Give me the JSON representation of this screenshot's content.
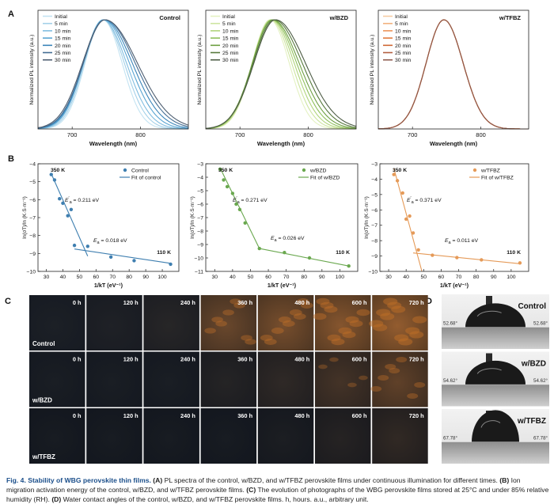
{
  "panel_letters": {
    "A": "A",
    "B": "B",
    "C": "C",
    "D": "D"
  },
  "panelA": {
    "xlabel": "Wavelength (nm)",
    "ylabel": "Normalized PL intensity (a.u.)",
    "xticks": [
      "700",
      "800"
    ],
    "legend": [
      "Initial",
      "5 min",
      "10 min",
      "15 min",
      "20 min",
      "25 min",
      "30 min"
    ],
    "plots": [
      {
        "tag": "Control",
        "colors": [
          "#c3e3f2",
          "#a3d0e8",
          "#80bde0",
          "#5aa5d2",
          "#3c86ba",
          "#446d93",
          "#4d5d70"
        ]
      },
      {
        "tag": "w/BZD",
        "colors": [
          "#e4f1c2",
          "#cde4a0",
          "#b1d47c",
          "#8fc05b",
          "#6e9f42",
          "#577a3d",
          "#4d5c45"
        ]
      },
      {
        "tag": "w/TFBZ",
        "colors": [
          "#f6cba3",
          "#f2b07c",
          "#ec935a",
          "#e07a3e",
          "#cf6836",
          "#b35f40",
          "#8e5a4c"
        ]
      }
    ]
  },
  "chart_data": [
    {
      "type": "line",
      "panel": "A",
      "name": "Control",
      "xlabel": "Wavelength (nm)",
      "ylabel": "Normalized PL intensity (a.u.)",
      "xlim": [
        650,
        870
      ],
      "series": [
        {
          "name": "Initial",
          "peak_nm": 745
        },
        {
          "name": "5 min",
          "peak_nm": 745
        },
        {
          "name": "10 min",
          "peak_nm": 745
        },
        {
          "name": "15 min",
          "peak_nm": 746
        },
        {
          "name": "20 min",
          "peak_nm": 747
        },
        {
          "name": "25 min",
          "peak_nm": 748
        },
        {
          "name": "30 min",
          "peak_nm": 748
        }
      ]
    },
    {
      "type": "line",
      "panel": "A",
      "name": "w/BZD",
      "xlabel": "Wavelength (nm)",
      "ylabel": "Normalized PL intensity (a.u.)",
      "xlim": [
        650,
        870
      ],
      "series": [
        {
          "name": "Initial",
          "peak_nm": 744
        },
        {
          "name": "5 min",
          "peak_nm": 745
        },
        {
          "name": "10 min",
          "peak_nm": 746
        },
        {
          "name": "15 min",
          "peak_nm": 747
        },
        {
          "name": "20 min",
          "peak_nm": 748
        },
        {
          "name": "25 min",
          "peak_nm": 750
        },
        {
          "name": "30 min",
          "peak_nm": 752
        }
      ]
    },
    {
      "type": "line",
      "panel": "A",
      "name": "w/TFBZ",
      "xlabel": "Wavelength (nm)",
      "ylabel": "Normalized PL intensity (a.u.)",
      "xlim": [
        650,
        870
      ],
      "series": [
        {
          "name": "Initial",
          "peak_nm": 746
        },
        {
          "name": "5 min",
          "peak_nm": 746
        },
        {
          "name": "10 min",
          "peak_nm": 746
        },
        {
          "name": "15 min",
          "peak_nm": 746
        },
        {
          "name": "20 min",
          "peak_nm": 746
        },
        {
          "name": "25 min",
          "peak_nm": 746
        },
        {
          "name": "30 min",
          "peak_nm": 746
        }
      ]
    },
    {
      "type": "scatter",
      "panel": "B",
      "name": "Control",
      "color": "#3f7fb0",
      "xlabel": "1/kT (eV⁻¹)",
      "ylabel": "ln(σT)/ln (K·S·m⁻¹)",
      "xlim": [
        25,
        110
      ],
      "ylim": [
        -10,
        -4
      ],
      "xticks": [
        30,
        40,
        50,
        60,
        70,
        80,
        90,
        100
      ],
      "yticks": [
        -4,
        -5,
        -6,
        -7,
        -8,
        -9,
        -10
      ],
      "points": {
        "x": [
          33,
          35,
          38,
          40,
          43,
          45,
          47,
          55,
          69,
          83,
          105
        ],
        "y": [
          -4.6,
          -4.9,
          -5.95,
          -6.2,
          -6.9,
          -6.55,
          -8.55,
          -8.6,
          -9.2,
          -9.4,
          -9.6
        ]
      },
      "fit_high": {
        "x": [
          33,
          55
        ],
        "y": [
          -4.55,
          -9.15
        ]
      },
      "fit_low": {
        "x": [
          47,
          105
        ],
        "y": [
          -8.75,
          -9.55
        ]
      },
      "legend": [
        "Control",
        "Fit of control"
      ],
      "temp_high": "350 K",
      "temp_low": "110 K",
      "ea_high": "= 0.211 eV",
      "ea_low": "= 0.018 eV"
    },
    {
      "type": "scatter",
      "panel": "B",
      "name": "w/BZD",
      "color": "#6aa84f",
      "xlabel": "1/kT (eV⁻¹)",
      "ylabel": "ln(σT)/ln (K·S·m⁻¹)",
      "xlim": [
        25,
        110
      ],
      "ylim": [
        -11,
        -3
      ],
      "xticks": [
        30,
        40,
        50,
        60,
        70,
        80,
        90,
        100
      ],
      "yticks": [
        -3,
        -4,
        -5,
        -6,
        -7,
        -8,
        -9,
        -10,
        -11
      ],
      "points": {
        "x": [
          33,
          35,
          37,
          40,
          42,
          44,
          47,
          55,
          69,
          83,
          105
        ],
        "y": [
          -3.4,
          -4.2,
          -4.7,
          -5.2,
          -6.0,
          -6.4,
          -7.4,
          -9.3,
          -9.6,
          -10.0,
          -10.6
        ]
      },
      "fit_high": {
        "x": [
          33,
          55
        ],
        "y": [
          -3.3,
          -9.3
        ]
      },
      "fit_low": {
        "x": [
          55,
          105
        ],
        "y": [
          -9.3,
          -10.6
        ]
      },
      "legend": [
        "w/BZD",
        "Fit of w/BZD"
      ],
      "temp_high": "350 K",
      "temp_low": "110 K",
      "ea_high": "= 0.271 eV",
      "ea_low": "= 0.026 eV"
    },
    {
      "type": "scatter",
      "panel": "B",
      "name": "w/TFBZ",
      "color": "#e59a58",
      "xlabel": "1/kT (eV⁻¹)",
      "ylabel": "ln(σT)/ln (K·S·m⁻¹)",
      "xlim": [
        25,
        110
      ],
      "ylim": [
        -10,
        -3
      ],
      "xticks": [
        30,
        40,
        50,
        60,
        70,
        80,
        90,
        100
      ],
      "yticks": [
        -3,
        -4,
        -5,
        -6,
        -7,
        -8,
        -9,
        -10
      ],
      "points": {
        "x": [
          33,
          35,
          38,
          40,
          42,
          44,
          47,
          55,
          69,
          83,
          105
        ],
        "y": [
          -3.7,
          -4.1,
          -4.9,
          -6.6,
          -6.4,
          -7.5,
          -8.6,
          -8.95,
          -9.1,
          -9.25,
          -9.45
        ]
      },
      "fit_high": {
        "x": [
          33,
          49
        ],
        "y": [
          -3.3,
          -10
        ]
      },
      "fit_low": {
        "x": [
          44,
          105
        ],
        "y": [
          -8.8,
          -9.5
        ]
      },
      "legend": [
        "w/TFBZ",
        "Fit of w/TFBZ"
      ],
      "temp_high": "350 K",
      "temp_low": "110 K",
      "ea_high": "= 0.371 eV",
      "ea_low": "= 0.011 eV"
    }
  ],
  "panelB": {
    "xlabel": "1/kT (eV⁻¹)",
    "ylabel": "ln(σT)/ln (K·S·m⁻¹)",
    "ea_sub": "a",
    "ea_prime": "′",
    "ea_sym": "E"
  },
  "panelC": {
    "times": [
      "0 h",
      "120 h",
      "240 h",
      "360 h",
      "480 h",
      "600 h",
      "720 h"
    ],
    "rows": [
      {
        "label": "Control",
        "deg": [
          0,
          0.02,
          0.08,
          0.55,
          0.65,
          0.75,
          0.85
        ]
      },
      {
        "label": "w/BZD",
        "deg": [
          0,
          0,
          0,
          0.08,
          0.15,
          0.3,
          0.5
        ]
      },
      {
        "label": "w/TFBZ",
        "deg": [
          0,
          0,
          0,
          0,
          0.03,
          0.1,
          0.18
        ]
      }
    ]
  },
  "panelD": {
    "items": [
      {
        "label": "Control",
        "angle": "52.68°",
        "deg": 52.68
      },
      {
        "label": "w/BZD",
        "angle": "54.62°",
        "deg": 54.62
      },
      {
        "label": "w/TFBZ",
        "angle": "67.78°",
        "deg": 67.78
      }
    ]
  },
  "caption": {
    "title": "Fig. 4. Stability of WBG perovskite thin films.",
    "parts": [
      {
        "l": "(A)",
        "t": " PL spectra of the control, w/BZD, and w/TFBZ perovskite films under continuous illumination for different times. "
      },
      {
        "l": "(B)",
        "t": " Ion migration activation energy of the control, w/BZD, and w/TFBZ perovskite films. "
      },
      {
        "l": "(C)",
        "t": " The evolution of photographs of the WBG perovskite films stored at 25°C and under 85% relative humidity (RH). "
      },
      {
        "l": "(D)",
        "t": " Water contact angles of the control, w/BZD, and w/TFBZ perovskite films. h, hours. a.u., arbitrary unit."
      }
    ]
  }
}
